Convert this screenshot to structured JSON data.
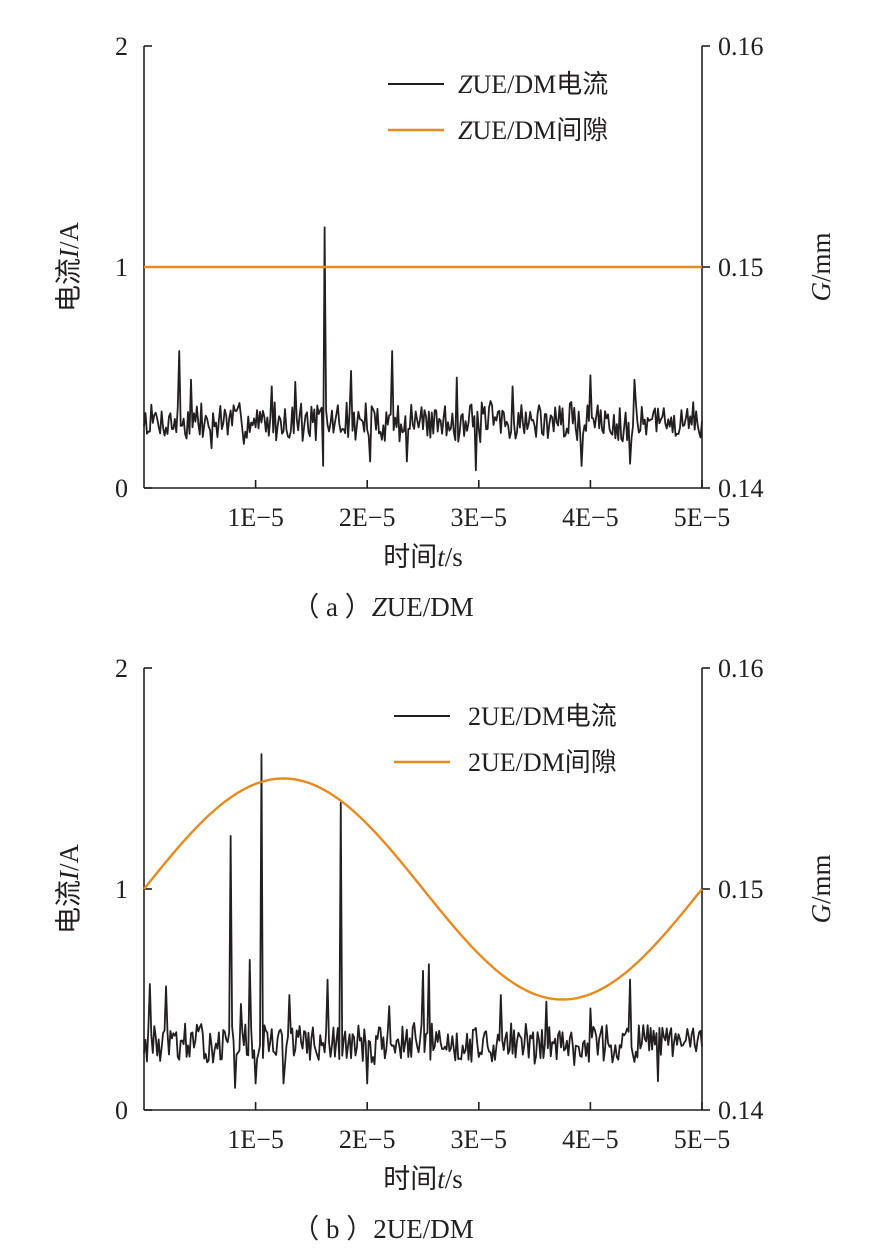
{
  "colors": {
    "current": "#231f20",
    "gap": "#e58a1f",
    "axis": "#231f20"
  },
  "chart_data": [
    {
      "type": "line",
      "caption": "（ a ）ZUE/DM",
      "caption_prefix": "（ a ）",
      "caption_italic": "Z",
      "caption_rest": "UE/DM",
      "xlabel": "时间t/s",
      "xlabel_prefix": "时间",
      "xlabel_italic": "t",
      "xlabel_rest": "/s",
      "ylabel": "电流I/A",
      "ylabel_prefix": "电流",
      "ylabel_italic": "I",
      "ylabel_rest": "/A",
      "y2label": "G/mm",
      "y2label_italic": "G",
      "y2label_rest": "/mm",
      "xlim": [
        0,
        5e-05
      ],
      "ylim": [
        0,
        2
      ],
      "y2lim": [
        0.14,
        0.16
      ],
      "xticks": [
        1e-05,
        2e-05,
        3e-05,
        4e-05,
        5e-05
      ],
      "xtick_labels": [
        "1E−5",
        "2E−5",
        "3E−5",
        "4E−5",
        "5E−5"
      ],
      "yticks": [
        0,
        1,
        2
      ],
      "ytick_labels": [
        "0",
        "1",
        "2"
      ],
      "y2ticks": [
        0.14,
        0.15,
        0.16
      ],
      "y2tick_labels": [
        "0.14",
        "0.15",
        "0.16"
      ],
      "legend_position": "top-right",
      "grid": false,
      "series": [
        {
          "name": "ZUE/DM电流",
          "name_italic": "Z",
          "name_rest": "UE/DM电流",
          "axis": "left",
          "kind": "current",
          "baseline": 0.3,
          "spikes": [
            [
              3.2e-06,
              0.62
            ],
            [
              4.2e-06,
              0.49
            ],
            [
              6e-06,
              0.18
            ],
            [
              1.14e-05,
              0.46
            ],
            [
              1.35e-05,
              0.48
            ],
            [
              1.6e-05,
              0.1
            ],
            [
              1.62e-05,
              1.18
            ],
            [
              1.86e-05,
              0.53
            ],
            [
              2.02e-05,
              0.12
            ],
            [
              2.22e-05,
              0.62
            ],
            [
              2.35e-05,
              0.12
            ],
            [
              2.8e-05,
              0.5
            ],
            [
              2.97e-05,
              0.08
            ],
            [
              3.3e-05,
              0.46
            ],
            [
              3.92e-05,
              0.1
            ],
            [
              4e-05,
              0.51
            ],
            [
              4.35e-05,
              0.11
            ],
            [
              4.4e-05,
              0.49
            ]
          ]
        },
        {
          "name": "ZUE/DM间隙",
          "name_italic": "Z",
          "name_rest": "UE/DM间隙",
          "axis": "right",
          "kind": "gap",
          "x": [
            0,
            5e-05
          ],
          "y": [
            0.15,
            0.15
          ]
        }
      ]
    },
    {
      "type": "line",
      "caption": "（ b ）2UE/DM",
      "caption_prefix": "（ b ）",
      "caption_italic": "",
      "caption_rest": "2UE/DM",
      "xlabel": "时间t/s",
      "xlabel_prefix": "时间",
      "xlabel_italic": "t",
      "xlabel_rest": "/s",
      "ylabel": "电流I/A",
      "ylabel_prefix": "电流",
      "ylabel_italic": "I",
      "ylabel_rest": "/A",
      "y2label": "G/mm",
      "y2label_italic": "G",
      "y2label_rest": "/mm",
      "xlim": [
        0,
        5e-05
      ],
      "ylim": [
        0,
        2
      ],
      "y2lim": [
        0.14,
        0.16
      ],
      "xticks": [
        1e-05,
        2e-05,
        3e-05,
        4e-05,
        5e-05
      ],
      "xtick_labels": [
        "1E−5",
        "2E−5",
        "3E−5",
        "4E−5",
        "5E−5"
      ],
      "yticks": [
        0,
        1,
        2
      ],
      "ytick_labels": [
        "0",
        "1",
        "2"
      ],
      "y2ticks": [
        0.14,
        0.15,
        0.16
      ],
      "y2tick_labels": [
        "0.14",
        "0.15",
        "0.16"
      ],
      "legend_position": "top-right",
      "grid": false,
      "series": [
        {
          "name": "2UE/DM电流",
          "name_italic": "",
          "name_rest": "2UE/DM电流",
          "axis": "left",
          "kind": "current",
          "baseline": 0.3,
          "spikes": [
            [
              5e-07,
              0.57
            ],
            [
              2e-06,
              0.56
            ],
            [
              7.7e-06,
              1.24
            ],
            [
              8.2e-06,
              0.1
            ],
            [
              8.7e-06,
              0.48
            ],
            [
              9.5e-06,
              0.68
            ],
            [
              1e-05,
              0.12
            ],
            [
              1.05e-05,
              1.61
            ],
            [
              1.1e-05,
              0.35
            ],
            [
              1.25e-05,
              0.12
            ],
            [
              1.3e-05,
              0.52
            ],
            [
              1.65e-05,
              0.59
            ],
            [
              1.76e-05,
              1.39
            ],
            [
              2e-05,
              0.12
            ],
            [
              2.2e-05,
              0.47
            ],
            [
              2.5e-05,
              0.63
            ],
            [
              2.55e-05,
              0.66
            ],
            [
              3.2e-05,
              0.52
            ],
            [
              3.6e-05,
              0.49
            ],
            [
              4e-05,
              0.46
            ],
            [
              4.35e-05,
              0.59
            ],
            [
              4.6e-05,
              0.13
            ]
          ]
        },
        {
          "name": "2UE/DM间隙",
          "name_italic": "",
          "name_rest": "2UE/DM间隙",
          "axis": "right",
          "kind": "gap",
          "function": "0.15 + 0.005*sin(2*pi*x/5e-5)",
          "x": [
            0,
            6.25e-06,
            1.25e-05,
            1.875e-05,
            2.5e-05,
            3.125e-05,
            3.75e-05,
            4.375e-05,
            5e-05
          ],
          "y": [
            0.15,
            0.15354,
            0.155,
            0.15354,
            0.15,
            0.14646,
            0.145,
            0.14646,
            0.15
          ]
        }
      ]
    }
  ]
}
